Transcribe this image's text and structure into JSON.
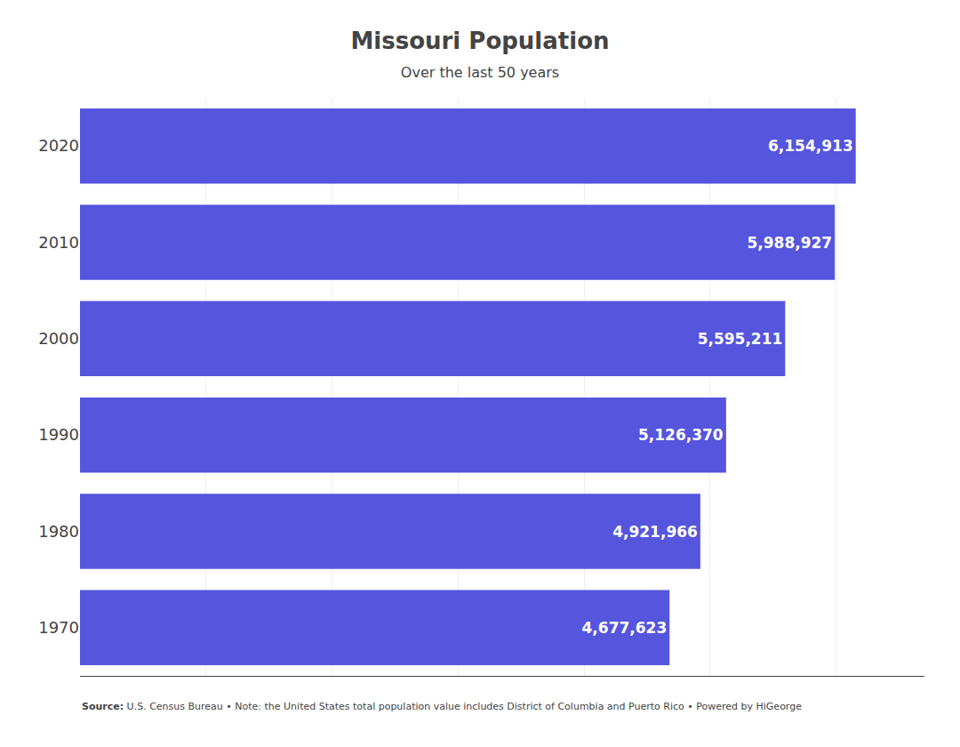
{
  "chart_data": {
    "type": "bar",
    "orientation": "horizontal",
    "title": "Missouri Population",
    "subtitle": "Over the last 50 years",
    "categories": [
      "2020",
      "2010",
      "2000",
      "1990",
      "1980",
      "1970"
    ],
    "values": [
      6154913,
      5988927,
      5595211,
      5126370,
      4921966,
      4677623
    ],
    "value_labels": [
      "6,154,913",
      "5,988,927",
      "5,595,211",
      "5,126,370",
      "4,921,966",
      "4,677,623"
    ],
    "data_labels": true,
    "color": "#5555dd",
    "xlim": [
      0,
      6700000
    ],
    "xticks": [
      0,
      1000000,
      2000000,
      3000000,
      4000000,
      5000000,
      6000000
    ],
    "tick_labels": "y",
    "grid": true,
    "annotations": [
      "Source:",
      " U.S. Census Bureau • Note: the United States total population value includes District of Columbia and Puerto Rico • ",
      "Powered by HiGeorge"
    ]
  }
}
